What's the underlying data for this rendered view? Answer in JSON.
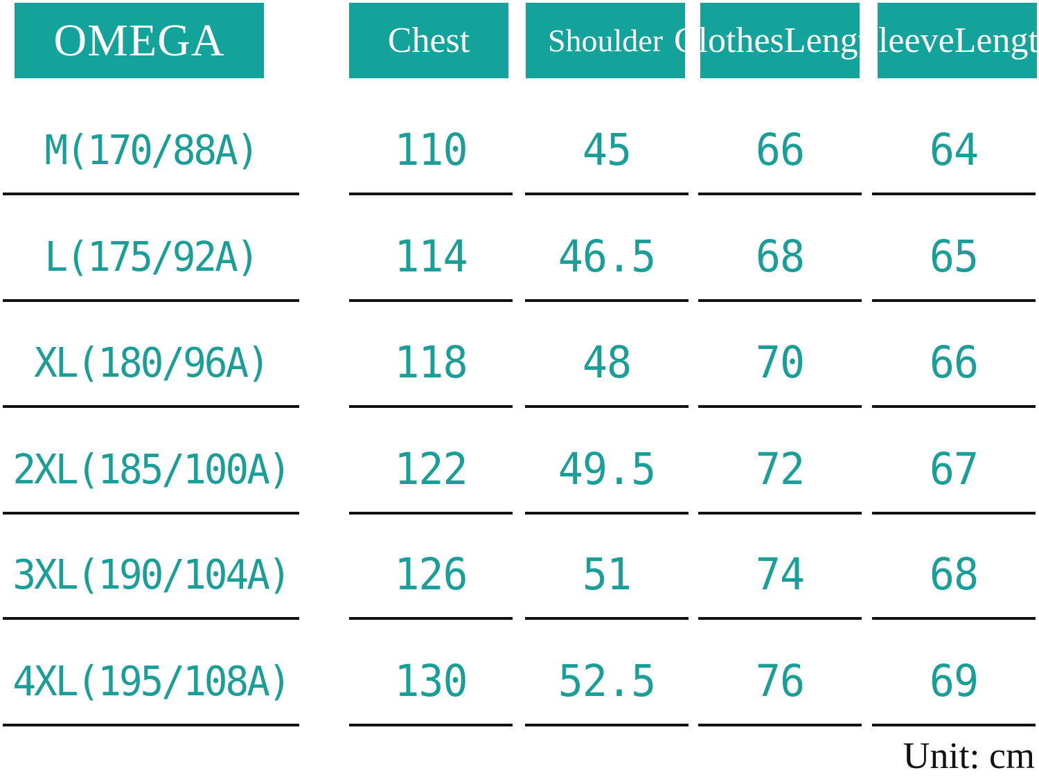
{
  "header": {
    "brand": "OMEGA",
    "chest": "Chest",
    "shoulder": "Shoulder",
    "clothes_length_line1": "Clothes",
    "clothes_length_line2": "Length",
    "sleeve_length_line1": "Sleeve",
    "sleeve_length_line2": "Length"
  },
  "rows": [
    {
      "size": "M(170/88A)",
      "chest": "110",
      "shoulder": "45",
      "clothes_length": "66",
      "sleeve_length": "64"
    },
    {
      "size": "L(175/92A)",
      "chest": "114",
      "shoulder": "46.5",
      "clothes_length": "68",
      "sleeve_length": "65"
    },
    {
      "size": "XL(180/96A)",
      "chest": "118",
      "shoulder": "48",
      "clothes_length": "70",
      "sleeve_length": "66"
    },
    {
      "size": "2XL(185/100A)",
      "chest": "122",
      "shoulder": "49.5",
      "clothes_length": "72",
      "sleeve_length": "67"
    },
    {
      "size": "3XL(190/104A)",
      "chest": "126",
      "shoulder": "51",
      "clothes_length": "74",
      "sleeve_length": "68"
    },
    {
      "size": "4XL(195/108A)",
      "chest": "130",
      "shoulder": "52.5",
      "clothes_length": "76",
      "sleeve_length": "69"
    }
  ],
  "unit": "Unit: cm",
  "colors": {
    "header_bg": "#14a39b",
    "value_text": "#1a9e98",
    "rule": "#111111"
  }
}
